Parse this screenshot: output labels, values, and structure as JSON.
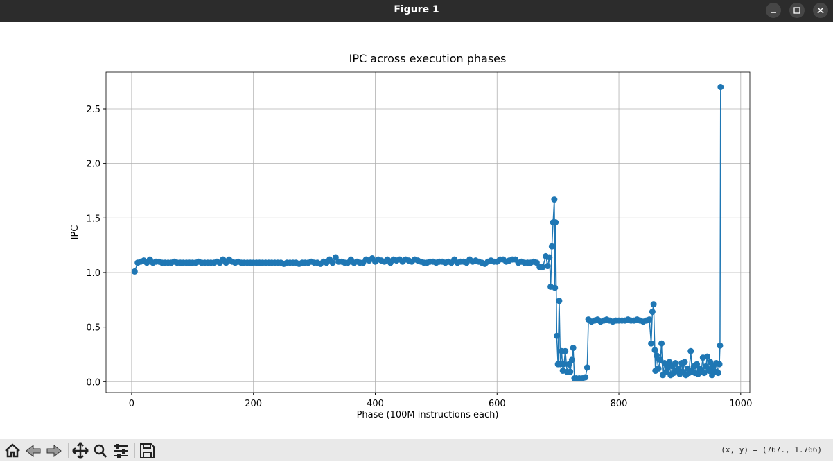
{
  "window": {
    "title": "Figure 1",
    "status": "(x, y) = (767., 1.766)"
  },
  "chart_data": {
    "type": "line",
    "title": "IPC across execution phases",
    "x_label": "Phase (100M instructions each)",
    "y_label": "IPC",
    "xlim": [
      -42,
      1015
    ],
    "ylim": [
      -0.1,
      2.837
    ],
    "xticks": [
      0,
      200,
      400,
      600,
      800,
      1000
    ],
    "yticks": [
      {
        "value": 0,
        "label": "0.0"
      },
      {
        "value": 0.5,
        "label": "0.5"
      },
      {
        "value": 1,
        "label": "1.0"
      },
      {
        "value": 1.5,
        "label": "1.5"
      },
      {
        "value": 2,
        "label": "2.0"
      },
      {
        "value": 2.5,
        "label": "2.5"
      }
    ],
    "grid": true,
    "marker": true,
    "series": [
      {
        "color": "#1f77b4",
        "x": [
          5,
          10,
          15,
          20,
          25,
          30,
          35,
          40,
          45,
          50,
          55,
          60,
          65,
          70,
          75,
          80,
          85,
          90,
          95,
          100,
          105,
          110,
          115,
          120,
          125,
          130,
          135,
          140,
          145,
          150,
          155,
          160,
          165,
          170,
          175,
          180,
          185,
          190,
          195,
          200,
          205,
          210,
          215,
          220,
          225,
          230,
          235,
          240,
          245,
          250,
          255,
          260,
          265,
          270,
          275,
          280,
          285,
          290,
          295,
          300,
          305,
          310,
          315,
          320,
          325,
          330,
          335,
          340,
          345,
          350,
          355,
          360,
          365,
          370,
          375,
          380,
          385,
          390,
          395,
          400,
          405,
          410,
          415,
          420,
          425,
          430,
          435,
          440,
          445,
          450,
          455,
          460,
          465,
          470,
          475,
          480,
          485,
          490,
          495,
          500,
          505,
          510,
          515,
          520,
          525,
          530,
          535,
          540,
          545,
          550,
          555,
          560,
          565,
          570,
          575,
          580,
          585,
          590,
          595,
          600,
          605,
          610,
          615,
          620,
          625,
          630,
          635,
          640,
          645,
          650,
          655,
          660,
          665,
          670,
          675,
          680,
          683,
          686,
          688,
          690,
          692,
          694,
          695,
          696,
          698,
          700,
          702,
          704,
          706,
          708,
          710,
          712,
          715,
          718,
          720,
          723,
          725,
          727,
          730,
          735,
          740,
          745,
          748,
          750,
          755,
          760,
          765,
          770,
          775,
          780,
          785,
          790,
          795,
          800,
          805,
          810,
          815,
          820,
          825,
          830,
          835,
          840,
          845,
          850,
          853,
          855,
          857,
          859,
          860,
          862,
          865,
          868,
          870,
          872,
          875,
          878,
          880,
          883,
          885,
          888,
          890,
          893,
          895,
          898,
          900,
          903,
          905,
          908,
          910,
          913,
          915,
          918,
          920,
          923,
          925,
          928,
          930,
          933,
          935,
          938,
          940,
          943,
          945,
          948,
          950,
          953,
          955,
          958,
          960,
          963,
          965,
          966,
          967
        ],
        "values": [
          1.01,
          1.09,
          1.1,
          1.11,
          1.09,
          1.12,
          1.09,
          1.1,
          1.1,
          1.09,
          1.09,
          1.09,
          1.09,
          1.1,
          1.09,
          1.09,
          1.09,
          1.09,
          1.09,
          1.09,
          1.09,
          1.1,
          1.09,
          1.09,
          1.09,
          1.09,
          1.09,
          1.1,
          1.09,
          1.12,
          1.09,
          1.12,
          1.1,
          1.09,
          1.1,
          1.09,
          1.09,
          1.09,
          1.09,
          1.09,
          1.09,
          1.09,
          1.09,
          1.09,
          1.09,
          1.09,
          1.09,
          1.09,
          1.09,
          1.08,
          1.09,
          1.09,
          1.09,
          1.09,
          1.08,
          1.09,
          1.09,
          1.09,
          1.1,
          1.09,
          1.09,
          1.08,
          1.1,
          1.09,
          1.12,
          1.09,
          1.14,
          1.1,
          1.1,
          1.09,
          1.09,
          1.12,
          1.09,
          1.1,
          1.09,
          1.09,
          1.12,
          1.11,
          1.13,
          1.1,
          1.12,
          1.11,
          1.1,
          1.12,
          1.09,
          1.12,
          1.11,
          1.12,
          1.1,
          1.12,
          1.11,
          1.1,
          1.12,
          1.11,
          1.1,
          1.09,
          1.09,
          1.1,
          1.1,
          1.09,
          1.1,
          1.1,
          1.09,
          1.1,
          1.09,
          1.12,
          1.09,
          1.1,
          1.1,
          1.09,
          1.12,
          1.1,
          1.11,
          1.1,
          1.09,
          1.08,
          1.1,
          1.11,
          1.1,
          1.1,
          1.12,
          1.12,
          1.1,
          1.11,
          1.12,
          1.12,
          1.09,
          1.1,
          1.09,
          1.09,
          1.09,
          1.1,
          1.09,
          1.05,
          1.05,
          1.15,
          1.06,
          1.14,
          0.87,
          1.24,
          1.46,
          1.67,
          0.86,
          1.46,
          0.42,
          0.16,
          0.74,
          0.16,
          0.28,
          0.1,
          0.16,
          0.28,
          0.09,
          0.16,
          0.09,
          0.2,
          0.31,
          0.03,
          0.03,
          0.03,
          0.03,
          0.04,
          0.13,
          0.57,
          0.55,
          0.56,
          0.57,
          0.55,
          0.56,
          0.57,
          0.56,
          0.55,
          0.56,
          0.56,
          0.56,
          0.56,
          0.57,
          0.56,
          0.56,
          0.57,
          0.56,
          0.55,
          0.56,
          0.57,
          0.35,
          0.64,
          0.71,
          0.29,
          0.1,
          0.24,
          0.12,
          0.2,
          0.35,
          0.06,
          0.17,
          0.09,
          0.13,
          0.18,
          0.06,
          0.14,
          0.08,
          0.17,
          0.1,
          0.12,
          0.07,
          0.17,
          0.09,
          0.18,
          0.06,
          0.12,
          0.08,
          0.28,
          0.1,
          0.14,
          0.08,
          0.16,
          0.07,
          0.12,
          0.09,
          0.22,
          0.08,
          0.14,
          0.23,
          0.1,
          0.18,
          0.06,
          0.14,
          0.09,
          0.17,
          0.08,
          0.16,
          0.33,
          2.7
        ]
      }
    ]
  }
}
